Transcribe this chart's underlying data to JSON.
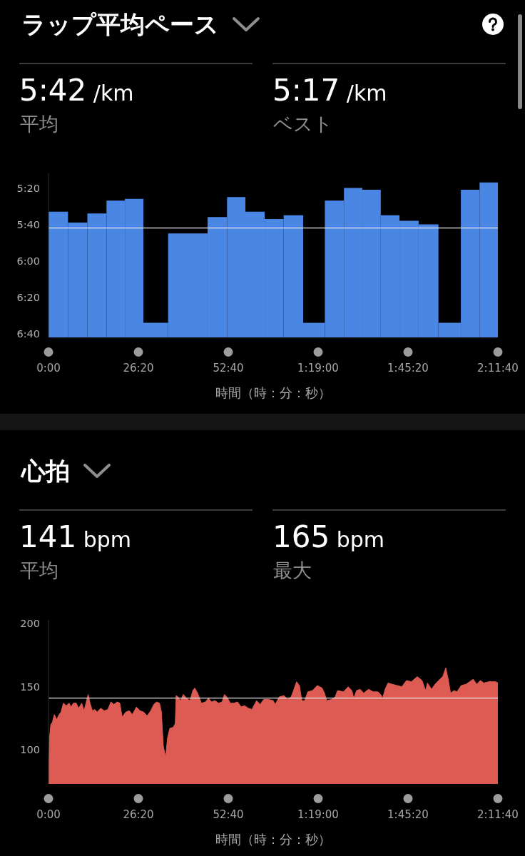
{
  "chart_data": [
    {
      "type": "histogram",
      "title": "ラップ平均ペース",
      "annotations": [
        "5:42 /km",
        "平均",
        "5:17 /km",
        "ベスト"
      ],
      "xlabel": "時間（時：分：秒）",
      "bins": [
        0,
        342,
        683,
        1020,
        1343,
        1668,
        2103,
        2445,
        2796,
        3139,
        3461,
        3800,
        4134,
        4477,
        4858,
        5194,
        5518,
        5841,
        6170,
        6507,
        6855,
        7249,
        7578,
        7900
      ],
      "base": [
        402,
        402,
        402,
        402,
        402,
        402,
        402,
        402,
        402,
        402,
        402,
        402,
        402,
        402,
        402,
        402,
        402,
        402,
        402,
        402,
        402,
        402,
        402
      ],
      "values": [
        -69,
        -63,
        -68,
        -75,
        -76,
        -8,
        -57,
        -57,
        -66,
        -77,
        -69,
        -65,
        -67,
        -8,
        -75,
        -82,
        -81,
        -67,
        -64,
        -62,
        -8,
        -81,
        -85
      ],
      "color": "#4a87e4",
      "xlim": [
        0,
        7900
      ],
      "xticks": [
        {
          "value": 0,
          "label": "0:00"
        },
        {
          "value": 1580,
          "label": "26:20"
        },
        {
          "value": 3160,
          "label": "52:40"
        },
        {
          "value": 4740,
          "label": "1:19:00"
        },
        {
          "value": 6320,
          "label": "1:45:20"
        },
        {
          "value": 7900,
          "label": "2:11:40"
        }
      ],
      "ylim": [
        402,
        312
      ],
      "yticks": [
        {
          "value": 320,
          "label": "5:20"
        },
        {
          "value": 340,
          "label": "5:40"
        },
        {
          "value": 360,
          "label": "6:00"
        },
        {
          "value": 380,
          "label": "6:20"
        },
        {
          "value": 400,
          "label": "6:40"
        }
      ],
      "ref_lines": [
        {
          "axis": "y",
          "value": 342,
          "color": "#e6e6e6"
        }
      ]
    },
    {
      "type": "area",
      "title": "心拍",
      "annotations": [
        "141 bpm",
        "平均",
        "165 bpm",
        "最大"
      ],
      "xlabel": "時間（時：分：秒）",
      "x": [
        0,
        19,
        40,
        69,
        102,
        144,
        186,
        220,
        261,
        312,
        362,
        395,
        437,
        487,
        529,
        584,
        625,
        659,
        697,
        730,
        772,
        814,
        856,
        918,
        981,
        1044,
        1098,
        1148,
        1211,
        1253,
        1295,
        1358,
        1420,
        1475,
        1546,
        1609,
        1671,
        1734,
        1797,
        1851,
        1901,
        1952,
        1985,
        2018,
        2060,
        2090,
        2131,
        2194,
        2228,
        2244,
        2278,
        2320,
        2370,
        2424,
        2487,
        2537,
        2571,
        2621,
        2688,
        2759,
        2813,
        2864,
        2926,
        2989,
        3052,
        3094,
        3148,
        3198,
        3261,
        3324,
        3386,
        3449,
        3512,
        3575,
        3658,
        3721,
        3784,
        3868,
        3951,
        3985,
        4056,
        4140,
        4202,
        4265,
        4307,
        4361,
        4411,
        4453,
        4503,
        4558,
        4641,
        4725,
        4809,
        4851,
        4892,
        4976,
        5039,
        5081,
        5186,
        5269,
        5332,
        5366,
        5416,
        5478,
        5541,
        5625,
        5709,
        5792,
        5855,
        5867,
        5917,
        5968,
        6043,
        6127,
        6210,
        6294,
        6378,
        6482,
        6566,
        6629,
        6662,
        6733,
        6796,
        6880,
        6930,
        6984,
        7026,
        7068,
        7131,
        7181,
        7256,
        7340,
        7402,
        7465,
        7528,
        7590,
        7653,
        7737,
        7800,
        7862,
        7900
      ],
      "values": [
        74,
        110,
        120,
        122,
        128,
        124,
        128,
        130,
        137,
        135,
        137,
        134,
        137,
        137,
        133,
        137,
        131,
        137,
        144,
        137,
        131,
        132,
        130,
        133,
        131,
        132,
        138,
        136,
        138,
        137,
        126,
        130,
        131,
        128,
        134,
        131,
        130,
        127,
        131,
        136,
        138,
        137,
        130,
        103,
        94,
        109,
        117,
        118,
        121,
        143,
        142,
        139,
        144,
        141,
        139,
        147,
        149,
        145,
        137,
        138,
        141,
        138,
        139,
        137,
        138,
        144,
        141,
        137,
        137,
        138,
        134,
        135,
        133,
        132,
        139,
        136,
        140,
        140,
        139,
        136,
        142,
        143,
        140,
        142,
        147,
        154,
        151,
        139,
        139,
        146,
        147,
        151,
        149,
        145,
        139,
        140,
        142,
        147,
        146,
        150,
        147,
        141,
        147,
        148,
        145,
        148,
        146,
        146,
        143,
        140,
        148,
        153,
        152,
        151,
        150,
        155,
        154,
        158,
        155,
        147,
        153,
        148,
        152,
        156,
        158,
        165,
        156,
        145,
        147,
        146,
        151,
        152,
        154,
        156,
        152,
        155,
        153,
        154,
        154,
        154,
        153
      ],
      "color": "#dd5b52",
      "xlim": [
        0,
        7900
      ],
      "xticks": [
        {
          "value": 0,
          "label": "0:00"
        },
        {
          "value": 1580,
          "label": "26:20"
        },
        {
          "value": 3160,
          "label": "52:40"
        },
        {
          "value": 4740,
          "label": "1:19:00"
        },
        {
          "value": 6320,
          "label": "1:45:20"
        },
        {
          "value": 7900,
          "label": "2:11:40"
        }
      ],
      "ylim": [
        73,
        203
      ],
      "yticks": [
        100,
        150,
        200
      ],
      "ref_lines": [
        {
          "axis": "y",
          "value": 141,
          "color": "#e6e6e6"
        }
      ]
    }
  ]
}
